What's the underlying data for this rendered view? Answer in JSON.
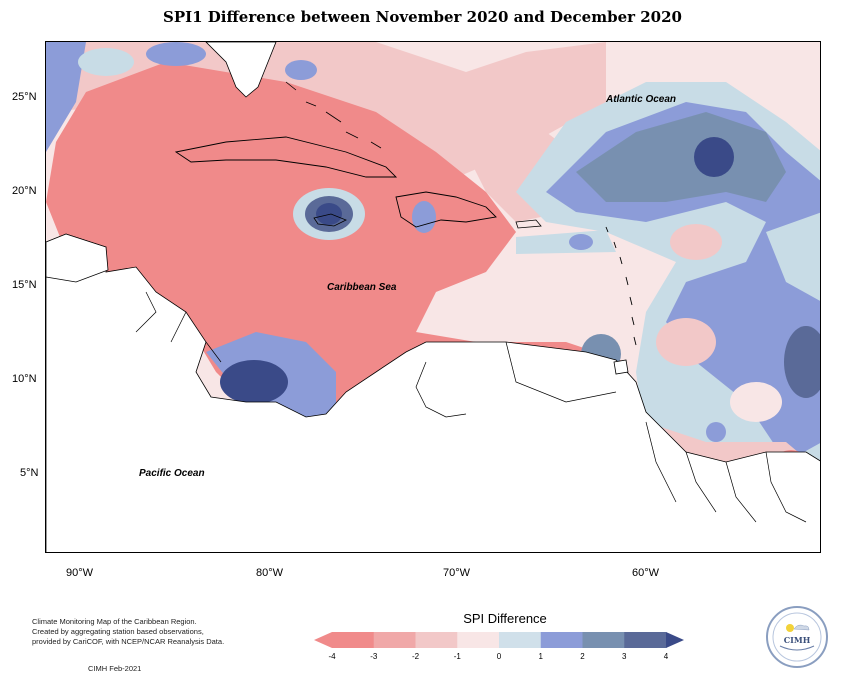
{
  "title": "SPI1 Difference between November 2020 and December 2020",
  "labels": {
    "atlantic": "Atlantic Ocean",
    "caribbean": "Caribbean Sea",
    "pacific": "Pacific Ocean"
  },
  "axes": {
    "lon_ticks": [
      "90°W",
      "80°W",
      "70°W",
      "60°W"
    ],
    "lat_ticks": [
      "25°N",
      "20°N",
      "15°N",
      "10°N",
      "5°N"
    ]
  },
  "legend": {
    "title": "SPI Difference",
    "ticks": [
      "-4",
      "-3",
      "-2",
      "-1",
      "0",
      "1",
      "2",
      "3",
      "4"
    ],
    "colors": [
      "#f08a8a",
      "#f0a8a8",
      "#f2c8c8",
      "#f8e6e6",
      "#d0e0ea",
      "#8c9cd8",
      "#7890b0",
      "#5a6a98",
      "#3a4a88"
    ]
  },
  "footer": {
    "line1": "Climate Monitoring Map of the Caribbean Region.",
    "line2": "Created by aggregating station based observations,",
    "line3": "provided by CariCOF, with NCEP/NCAR Reanalysis Data.",
    "credit": "CIMH Feb-2021"
  },
  "logo": {
    "text": "CIMH"
  }
}
